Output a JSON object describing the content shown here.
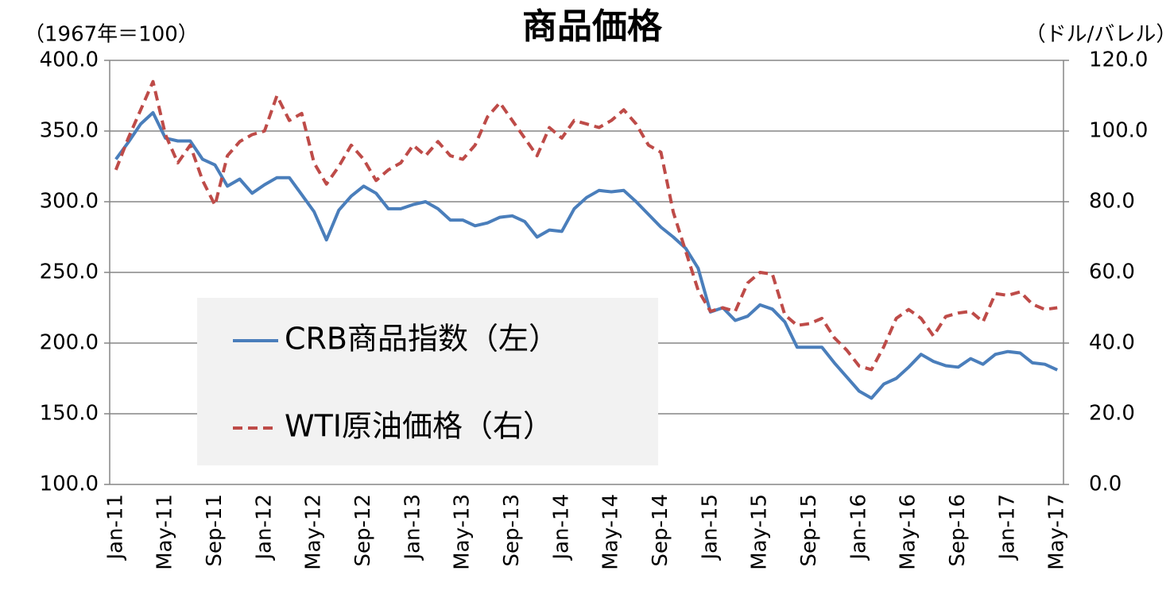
{
  "chart_data": {
    "type": "line",
    "title": "商品価格",
    "y_label": "（1967年＝100）",
    "y2_label": "（ドル/バレル）",
    "categories": [
      "Jan-11",
      null,
      null,
      null,
      "May-11",
      null,
      null,
      null,
      "Sep-11",
      null,
      null,
      null,
      "Jan-12",
      null,
      null,
      null,
      "May-12",
      null,
      null,
      null,
      "Sep-12",
      null,
      null,
      null,
      "Jan-13",
      null,
      null,
      null,
      "May-13",
      null,
      null,
      null,
      "Sep-13",
      null,
      null,
      null,
      "Jan-14",
      null,
      null,
      null,
      "May-14",
      null,
      null,
      null,
      "Sep-14",
      null,
      null,
      null,
      "Jan-15",
      null,
      null,
      null,
      "May-15",
      null,
      null,
      null,
      "Sep-15",
      null,
      null,
      null,
      "Jan-16",
      null,
      null,
      null,
      "May-16",
      null,
      null,
      null,
      "Sep-16",
      null,
      null,
      null,
      "Jan-17",
      null,
      null,
      null,
      "May-17"
    ],
    "series": [
      {
        "name": "CRB商品指数（左）",
        "color": "#4a7ebb",
        "dash": false,
        "axis": "y",
        "values": [
          330,
          342,
          355,
          363,
          345,
          343,
          343,
          330,
          326,
          311,
          316,
          306,
          312,
          317,
          317,
          305,
          293,
          273,
          294,
          304,
          311,
          306,
          295,
          295,
          298,
          300,
          295,
          287,
          287,
          283,
          285,
          289,
          290,
          286,
          275,
          280,
          279,
          295,
          303,
          308,
          307,
          308,
          300,
          291,
          282,
          275,
          267,
          253,
          222,
          225,
          216,
          219,
          227,
          224,
          215,
          197,
          197,
          197,
          186,
          176,
          166,
          161,
          171,
          175,
          183,
          192,
          187,
          184,
          183,
          189,
          185,
          192,
          194,
          193,
          186,
          185,
          181
        ]
      },
      {
        "name": "WTI原油価格（右）",
        "color": "#be4b48",
        "dash": true,
        "axis": "y2",
        "values": [
          89,
          98,
          106,
          114,
          99,
          91,
          96,
          86,
          79,
          93,
          97,
          99,
          100,
          110,
          103,
          105,
          91,
          85,
          90,
          96,
          92,
          86,
          89,
          91,
          96,
          93,
          97,
          93,
          92,
          96,
          104,
          108,
          103,
          98,
          93,
          101,
          98,
          103,
          102,
          101,
          103,
          106,
          102,
          96,
          94,
          77,
          66,
          55,
          49,
          50,
          49,
          57,
          60,
          59.5,
          48,
          45,
          45.5,
          47,
          41.5,
          38,
          33.5,
          32.5,
          39,
          47,
          49.5,
          47,
          42,
          47.5,
          48.5,
          49,
          46,
          54,
          53.5,
          54.5,
          51,
          49.5,
          50
        ]
      }
    ],
    "ylim": [
      100,
      400
    ],
    "yticks": [
      {
        "value": 100,
        "label": "100.0"
      },
      {
        "value": 150,
        "label": "150.0"
      },
      {
        "value": 200,
        "label": "200.0"
      },
      {
        "value": 250,
        "label": "250.0"
      },
      {
        "value": 300,
        "label": "300.0"
      },
      {
        "value": 350,
        "label": "350.0"
      },
      {
        "value": 400,
        "label": "400.0"
      }
    ],
    "y2lim": [
      0,
      120
    ],
    "y2ticks": [
      {
        "value": 0,
        "label": "0.0"
      },
      {
        "value": 20,
        "label": "20.0"
      },
      {
        "value": 40,
        "label": "40.0"
      },
      {
        "value": 60,
        "label": "60.0"
      },
      {
        "value": 80,
        "label": "80.0"
      },
      {
        "value": 100,
        "label": "100.0"
      },
      {
        "value": 120,
        "label": "120.0"
      }
    ],
    "grid": true
  }
}
